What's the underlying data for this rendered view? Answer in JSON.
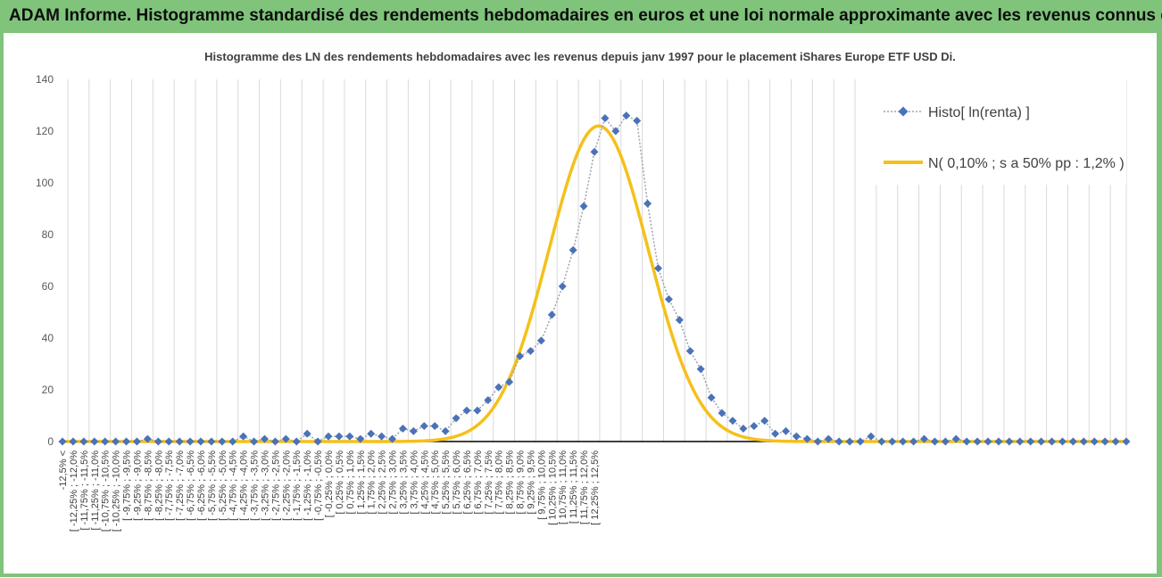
{
  "header": {
    "title": "ADAM Informe. Histogramme standardisé des rendements hebdomadaires en euros et une loi normale approximante avec les revenus connus distribués"
  },
  "colors": {
    "frame": "#7fc47a",
    "histogram": "#4a72b8",
    "histogram_line": "#9aa3b0",
    "normal": "#f5c01a",
    "grid": "#d9d9d9"
  },
  "chart_data": {
    "type": "line",
    "title": "Histogramme des LN des rendements hebdomadaires avec les revenus depuis janv 1997 pour le placement iShares Europe ETF USD Di.",
    "ylim": [
      0,
      140
    ],
    "yticks": [
      0,
      20,
      40,
      60,
      80,
      100,
      120,
      140
    ],
    "grid": true,
    "legend_position": "top-right",
    "categories": [
      "-12,5% <",
      "[ -12,25% ; -12,0%",
      "[ -11,75% ; -11,5%",
      "[ -11,25% ; -11,0%",
      "[ -10,75% ; -10,5%",
      "[ -10,25% ; -10,0%",
      "[ -9,75% ; -9,5%",
      "[ -9,25% ; -9,0%",
      "[ -8,75% ; -8,5%",
      "[ -8,25% ; -8,0%",
      "[ -7,75% ; -7,5%",
      "[ -7,25% ; -7,0%",
      "[ -6,75% ; -6,5%",
      "[ -6,25% ; -6,0%",
      "[ -5,75% ; -5,5%",
      "[ -5,25% ; -5,0%",
      "[ -4,75% ; -4,5%",
      "[ -4,25% ; -4,0%",
      "[ -3,75% ; -3,5%",
      "[ -3,25% ; -3,0%",
      "[ -2,75% ; -2,5%",
      "[ -2,25% ; -2,0%",
      "[ -1,75% ; -1,5%",
      "[ -1,25% ; -1,0%",
      "[ -0,75% ; -0,5%",
      "[ -0,25% ; 0,0%",
      "[ 0,25% ; 0,5%",
      "[ 0,75% ; 1,0%",
      "[ 1,25% ; 1,5%",
      "[ 1,75% ; 2,0%",
      "[ 2,25% ; 2,5%",
      "[ 2,75% ; 3,0%",
      "[ 3,25% ; 3,5%",
      "[ 3,75% ; 4,0%",
      "[ 4,25% ; 4,5%",
      "[ 4,75% ; 5,0%",
      "[ 5,25% ; 5,5%",
      "[ 5,75% ; 6,0%",
      "[ 6,25% ; 6,5%",
      "[ 6,75% ; 7,0%",
      "[ 7,25% ; 7,5%",
      "[ 7,75% ; 8,0%",
      "[ 8,25% ; 8,5%",
      "[ 8,75% ; 9,0%",
      "[ 9,25% ; 9,5%",
      "[ 9,75% ; 10,0%",
      "[ 10,25% ; 10,5%",
      "[ 10,75% ; 11,0%",
      "[ 11,25% ; 11,5%",
      "[ 11,75% ; 12,0%",
      "[ 12,25% ; 12,5%"
    ],
    "series": [
      {
        "name": "Histo[ ln(renta) ]",
        "style": "dotted-line-diamond-markers",
        "x": [
          -12.5,
          -12.25,
          -12.0,
          -11.75,
          -11.5,
          -11.25,
          -11.0,
          -10.75,
          -10.5,
          -10.25,
          -10.0,
          -9.75,
          -9.5,
          -9.25,
          -9.0,
          -8.75,
          -8.5,
          -8.25,
          -8.0,
          -7.75,
          -7.5,
          -7.25,
          -7.0,
          -6.75,
          -6.5,
          -6.25,
          -6.0,
          -5.75,
          -5.5,
          -5.25,
          -5.0,
          -4.75,
          -4.5,
          -4.25,
          -4.0,
          -3.75,
          -3.5,
          -3.25,
          -3.0,
          -2.75,
          -2.5,
          -2.25,
          -2.0,
          -1.75,
          -1.5,
          -1.25,
          -1.0,
          -0.75,
          -0.5,
          -0.25,
          0.0,
          0.25,
          0.5,
          0.75,
          1.0,
          1.25,
          1.5,
          1.75,
          2.0,
          2.25,
          2.5,
          2.75,
          3.0,
          3.25,
          3.5,
          3.75,
          4.0,
          4.25,
          4.5,
          4.75,
          5.0,
          5.25,
          5.5,
          5.75,
          6.0,
          6.25,
          6.5,
          6.75,
          7.0,
          7.25,
          7.5,
          7.75,
          8.0,
          8.25,
          8.5,
          8.75,
          9.0,
          9.25,
          9.5,
          9.75,
          10.0,
          10.25,
          10.5,
          10.75,
          11.0,
          11.25,
          11.5,
          11.75,
          12.0,
          12.25,
          12.5
        ],
        "values": [
          0,
          0,
          0,
          0,
          0,
          0,
          0,
          0,
          1,
          0,
          0,
          0,
          0,
          0,
          0,
          0,
          0,
          2,
          0,
          1,
          0,
          1,
          0,
          3,
          0,
          2,
          2,
          2,
          1,
          3,
          2,
          1,
          5,
          4,
          6,
          6,
          4,
          9,
          12,
          12,
          16,
          21,
          23,
          33,
          35,
          39,
          49,
          60,
          74,
          91,
          112,
          125,
          120,
          126,
          124,
          92,
          67,
          55,
          47,
          35,
          28,
          17,
          11,
          8,
          5,
          6,
          8,
          3,
          4,
          2,
          1,
          0,
          1,
          0,
          0,
          0,
          2,
          0,
          0,
          0,
          0,
          1,
          0,
          0,
          1,
          0,
          0,
          0,
          0,
          0,
          0,
          0,
          0,
          0,
          0,
          0,
          0,
          0,
          0,
          0,
          0
        ]
      },
      {
        "name": "N( 0,10% ; s a 50% pp : 1,2% )",
        "style": "solid-line",
        "mean": 0.1,
        "sigma": 1.17,
        "peak": 122
      }
    ]
  }
}
